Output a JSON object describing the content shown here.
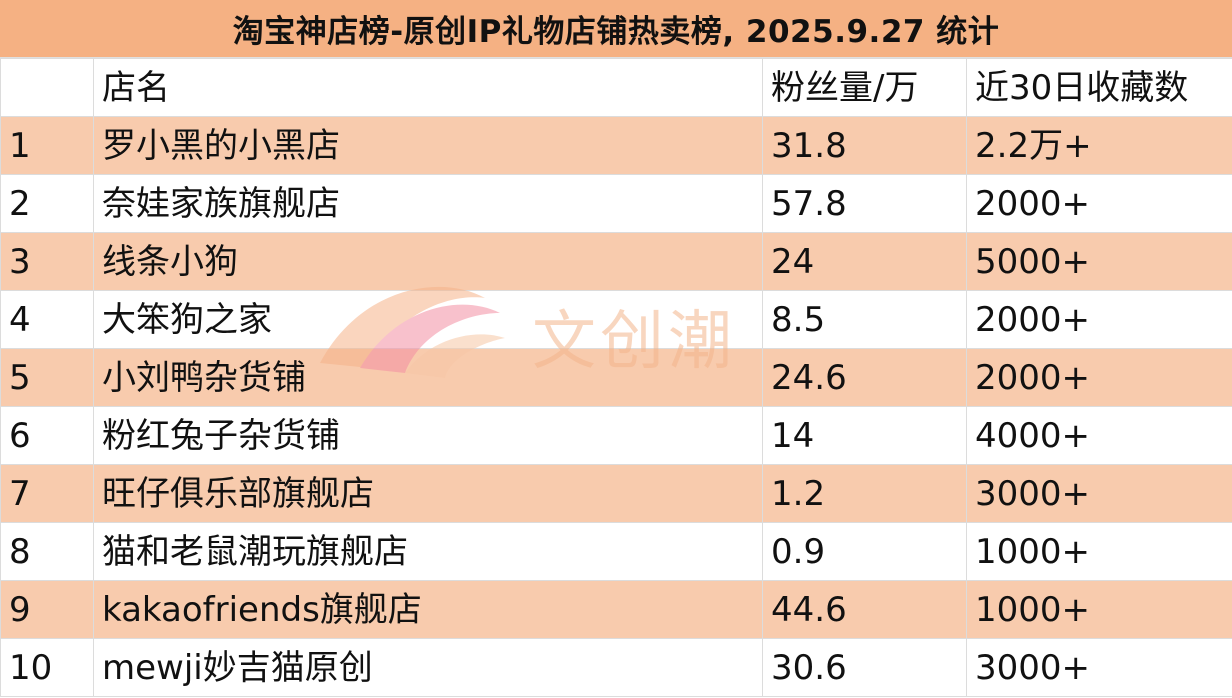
{
  "title": "淘宝神店榜-原创IP礼物店铺热卖榜, 2025.9.27 统计",
  "table": {
    "headers": [
      "",
      "店名",
      "粉丝量/万",
      "近30日收藏数"
    ],
    "rows": [
      [
        "1",
        "罗小黑的小黑店",
        "31.8",
        "2.2万+"
      ],
      [
        "2",
        "奈娃家族旗舰店",
        "57.8",
        "2000+"
      ],
      [
        "3",
        "线条小狗",
        "24",
        "5000+"
      ],
      [
        "4",
        "大笨狗之家",
        "8.5",
        "2000+"
      ],
      [
        "5",
        "小刘鸭杂货铺",
        "24.6",
        "2000+"
      ],
      [
        "6",
        "粉红兔子杂货铺",
        "14",
        "4000+"
      ],
      [
        "7",
        "旺仔俱乐部旗舰店",
        "1.2",
        "3000+"
      ],
      [
        "8",
        "猫和老鼠潮玩旗舰店",
        "0.9",
        "1000+"
      ],
      [
        "9",
        "kakaofriends旗舰店",
        "44.6",
        "1000+"
      ],
      [
        "10",
        "mewji妙吉猫原创",
        "30.6",
        "3000+"
      ]
    ]
  },
  "watermark": {
    "text": "文创潮"
  },
  "colors": {
    "title_bg": "#f5b183",
    "band_bg": "#f8cbad",
    "watermark": "#f3b58c"
  }
}
